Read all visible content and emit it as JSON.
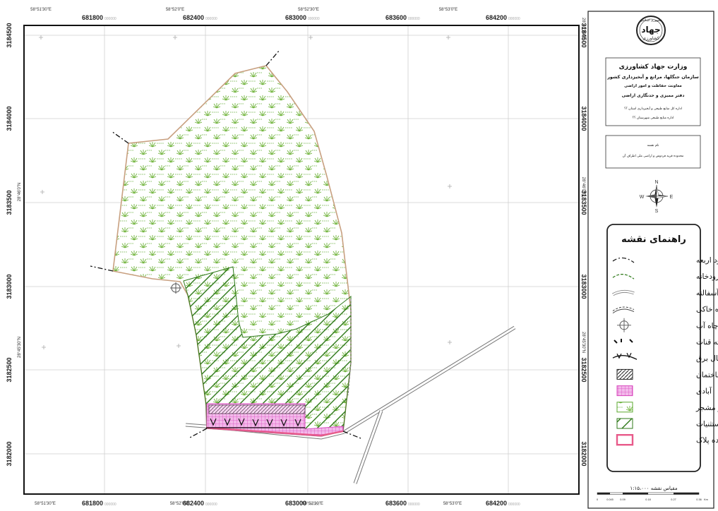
{
  "coords": {
    "easting": [
      "681800",
      "682400",
      "683000",
      "683600",
      "684200"
    ],
    "easting_suffix": "000000",
    "northing": [
      "3184500",
      "3184000",
      "3183500",
      "3183000",
      "3182500",
      "3182000"
    ],
    "geo_top": [
      "58°51'30\"E",
      "58°52'0\"E",
      "58°52'30\"E",
      "58°53'0\"E"
    ],
    "geo_bottom": [
      "58°51'30\"E",
      "58°52'0\"E",
      "58°52'30\"E",
      "58°53'0\"E"
    ],
    "geo_left": [
      "28°46'0\"N",
      "28°45'30\"N"
    ],
    "geo_right_top": "28°46'30\"N",
    "geo_right": [
      "28°46'0\"N",
      "28°45'30\"N"
    ]
  },
  "title_block": {
    "logo_top": "جمهوری اسلامی",
    "logo_main": "جهاد",
    "logo_sub": "کشاورزی",
    "ministry": "وزارت جهاد کشاورزی",
    "org": "سازمان جنگلها، مراتع و آبخیزداری کشور",
    "deputy": "معاونت حفاظت و امور اراضی",
    "office": "دفتر ممیزی و حدنگاری اراضی",
    "province": "اداره کل منابع طبیعی و آبخیزداری استان ؟؟",
    "county": "اداره منابع طبیعی شهرستان ؟؟"
  },
  "map_name": {
    "label": "نام نقشه",
    "value": "محدوده قریه فردوس و اراضی ملی اطراف آن"
  },
  "north_arrow": {
    "n": "N",
    "s": "S",
    "e": "E",
    "w": "W"
  },
  "legend": {
    "title": "راهنمای نقشه",
    "items": [
      {
        "label": "حدود اربعه",
        "symbol": "boundary-line"
      },
      {
        "label": "آبراهه و رودخانه",
        "symbol": "stream-line"
      },
      {
        "label": "راه آسفالته",
        "symbol": "paved-road"
      },
      {
        "label": "راه خاکی",
        "symbol": "dirt-road"
      },
      {
        "label": "چاه آب",
        "symbol": "water-well"
      },
      {
        "label": "رشته قنات",
        "symbol": "qanat-line"
      },
      {
        "label": "خط انتقال برق",
        "symbol": "power-line"
      },
      {
        "label": "ساختمان",
        "symbol": "building"
      },
      {
        "label": "آبادی",
        "symbol": "village"
      },
      {
        "label": "مرتع غیر مشجر",
        "symbol": "rangeland"
      },
      {
        "label": "مستثنیات",
        "symbol": "exclusions"
      },
      {
        "label": "محدوده پلاک",
        "symbol": "plot-boundary"
      }
    ]
  },
  "scale": {
    "title": "مقیاس نقشه ۱:۱۵،۰۰۰",
    "ticks": [
      "0",
      "0.045",
      "0.09",
      "0.18",
      "0.27",
      "0.36"
    ],
    "unit": "Km"
  },
  "colors": {
    "rangeland": "#5aa82c",
    "exclusion": "#2f7a1a",
    "village": "#d94bbf",
    "boundary": "#c8a080",
    "plot": "#e85a8a"
  }
}
